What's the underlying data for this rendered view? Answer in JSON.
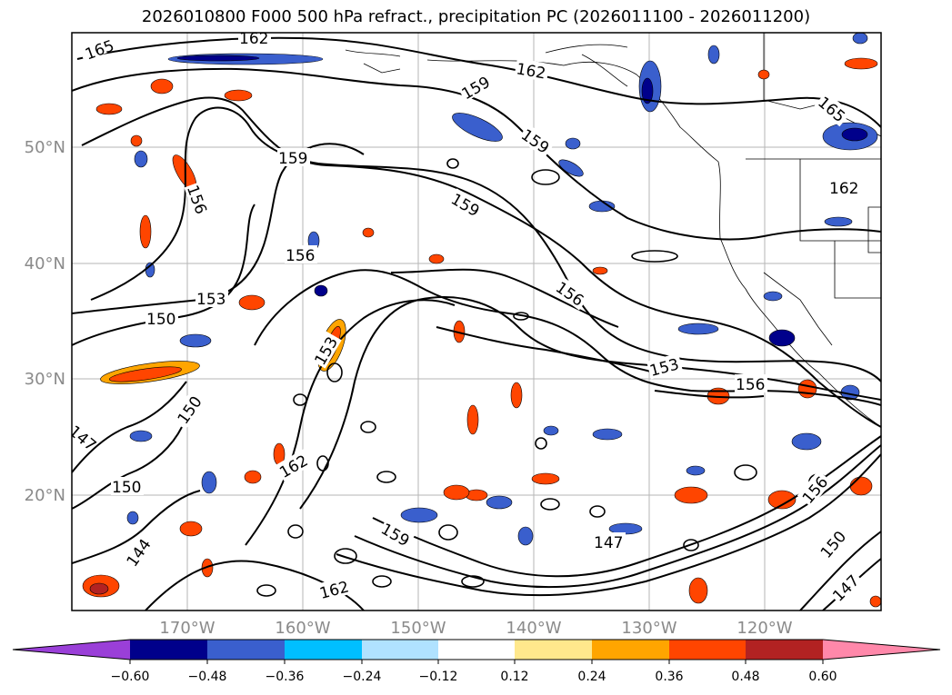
{
  "title": "2026010800 F000 500 hPa refract., precipitation PC (2026011100 - 2026011200)",
  "map": {
    "lon_labels": [
      "170°W",
      "160°W",
      "150°W",
      "140°W",
      "130°W",
      "120°W"
    ],
    "lat_labels": [
      "50°N",
      "40°N",
      "30°N",
      "20°N"
    ],
    "contour_labels": [
      "165",
      "162",
      "162",
      "159",
      "159",
      "159",
      "159",
      "156",
      "156",
      "156",
      "153",
      "153",
      "150",
      "150",
      "147",
      "147",
      "144",
      "150",
      "162",
      "156",
      "159",
      "165",
      "162",
      "156",
      "153",
      "150",
      "147",
      "162"
    ]
  },
  "colorbar": {
    "ticks": [
      "−0.60",
      "−0.48",
      "−0.36",
      "−0.24",
      "−0.12",
      "0.12",
      "0.24",
      "0.36",
      "0.48",
      "0.60"
    ],
    "colors": [
      "#9a3fd8",
      "#00008b",
      "#3a5fcd",
      "#00bfff",
      "#b0e2ff",
      "#ffffff",
      "#ffe88c",
      "#ffa500",
      "#ff4500",
      "#b22222",
      "#ff88aa"
    ]
  }
}
